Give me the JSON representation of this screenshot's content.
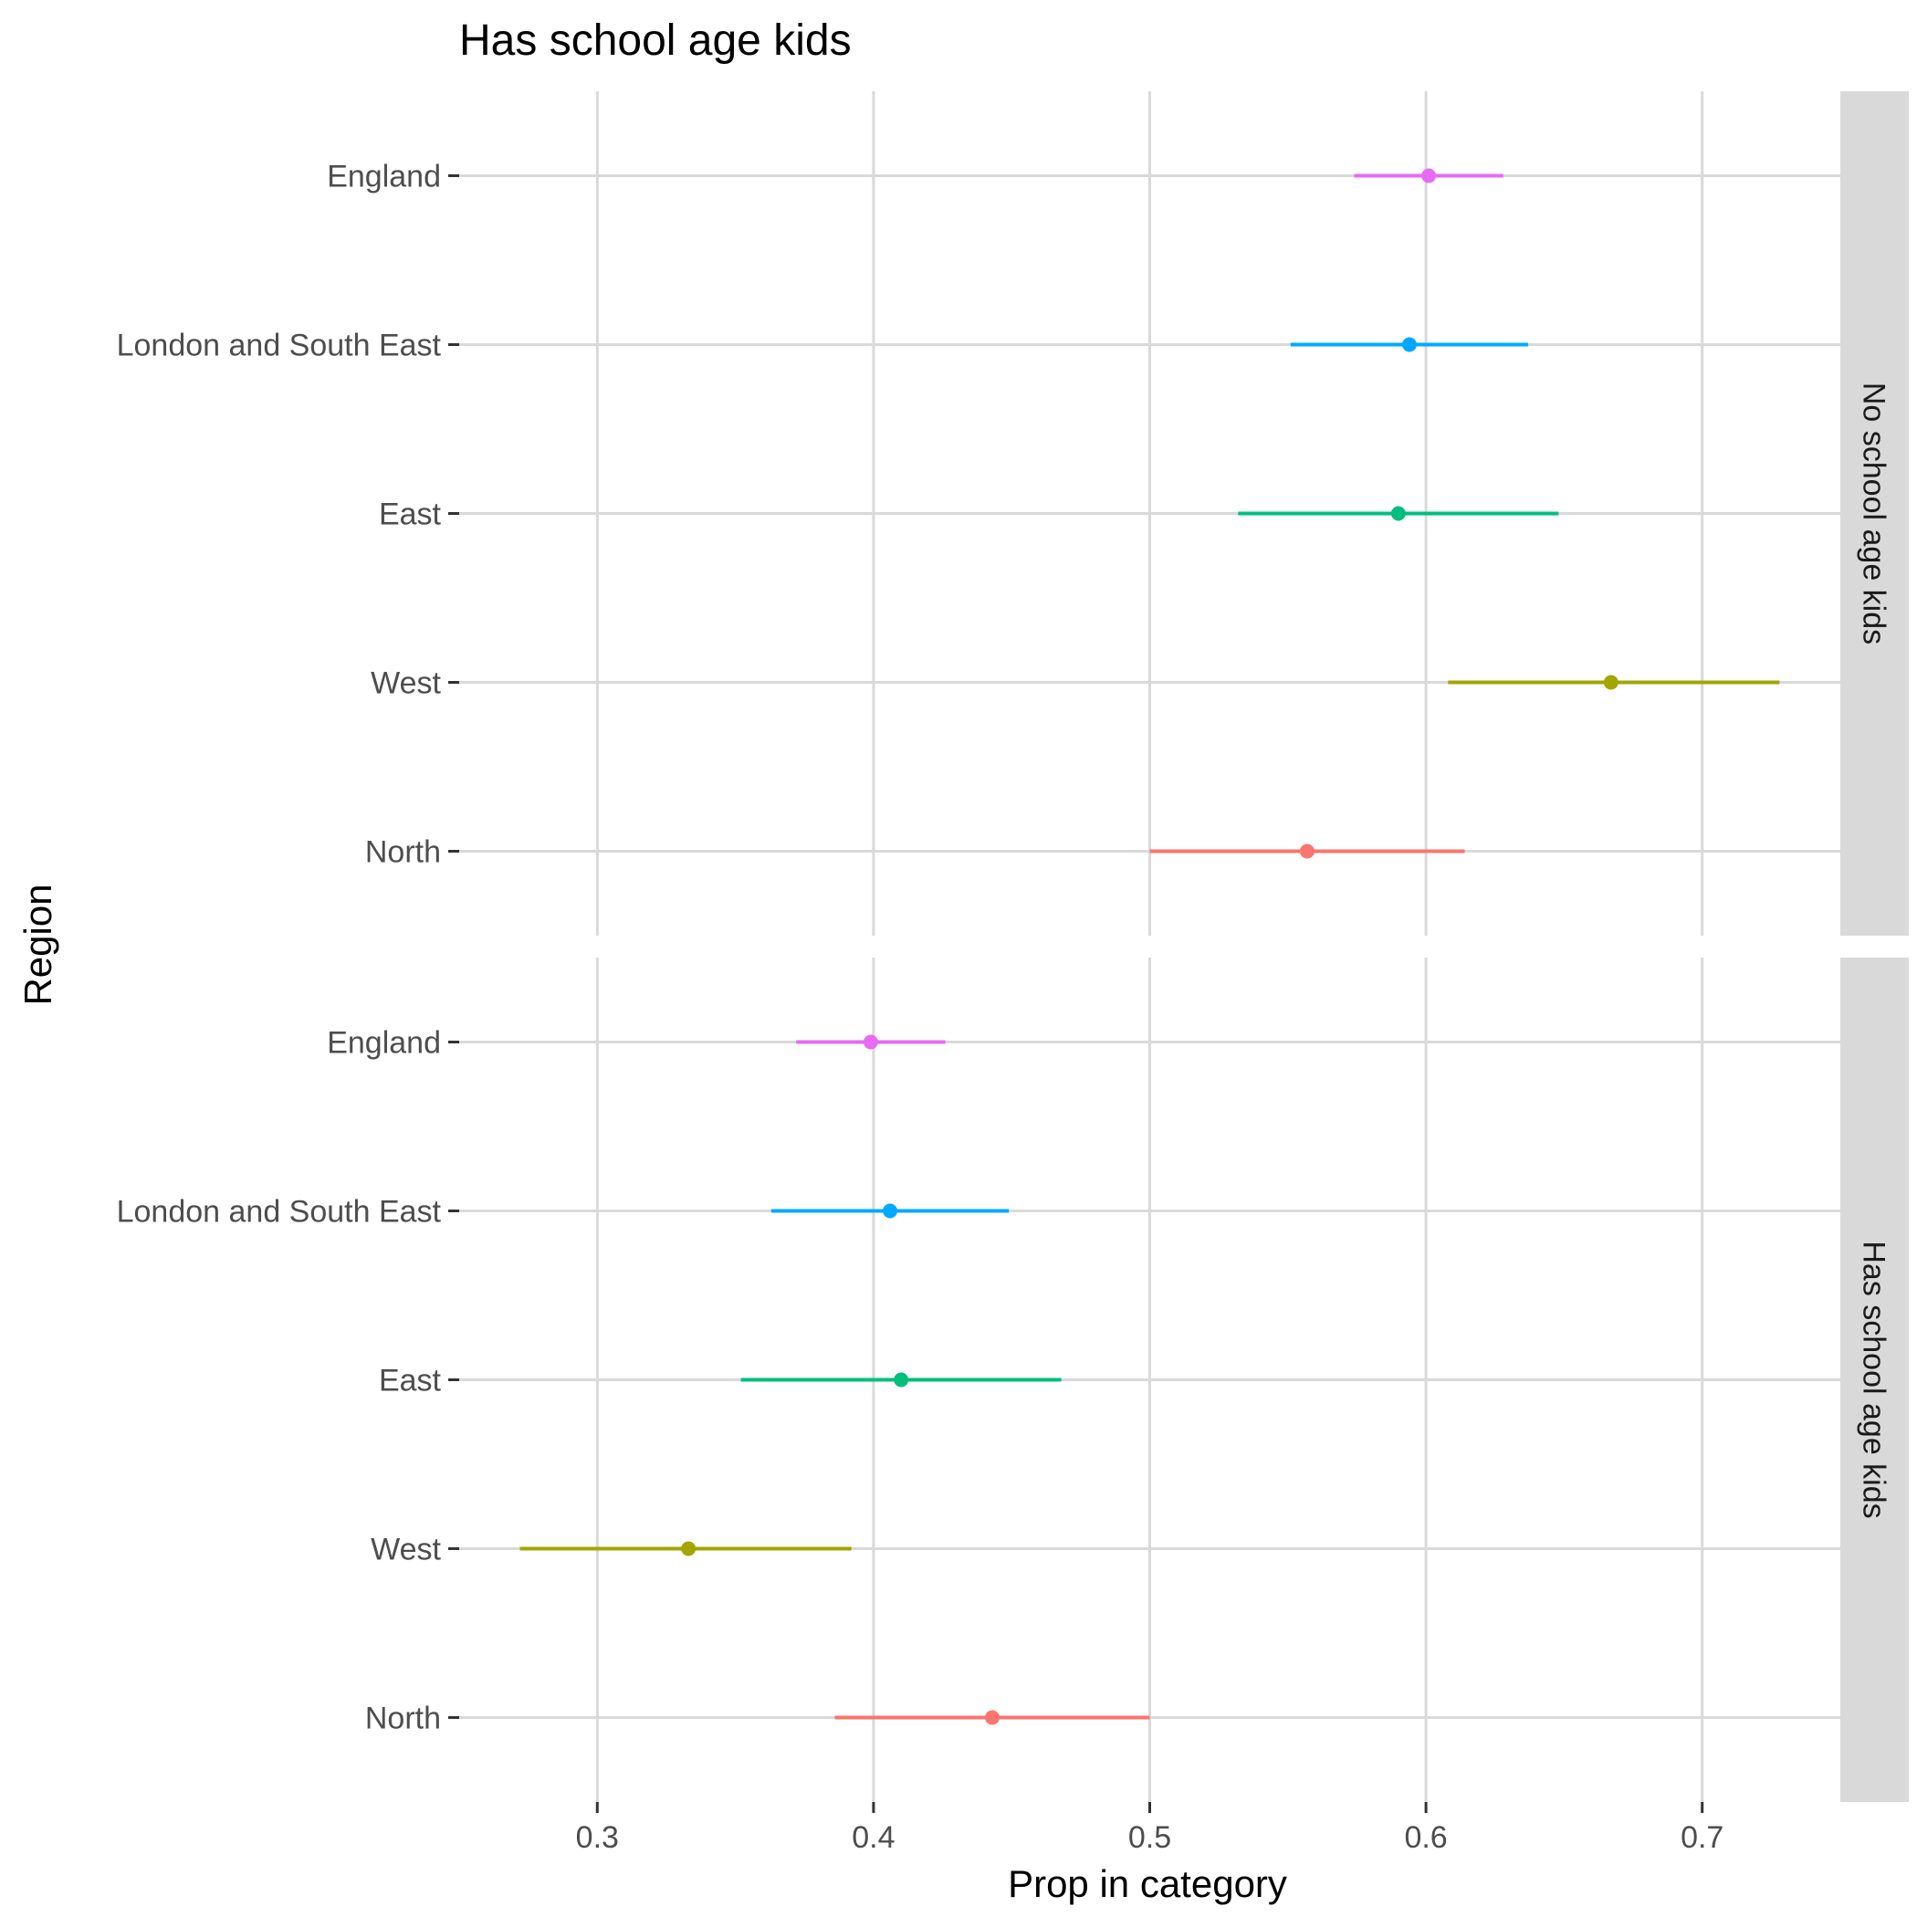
{
  "chart_data": {
    "type": "scatter",
    "title": "Has school age kids",
    "xlabel": "Prop in category",
    "ylabel": "Region",
    "xlim": [
      0.25,
      0.75
    ],
    "xticks": [
      0.3,
      0.4,
      0.5,
      0.6,
      0.7
    ],
    "xtick_labels": [
      "0.3",
      "0.4",
      "0.5",
      "0.6",
      "0.7"
    ],
    "categories": [
      "England",
      "London and South East",
      "East",
      "West",
      "North"
    ],
    "grid": true,
    "legend": "none",
    "colors": {
      "England": "#e76bf3",
      "London and South East": "#00a9ff",
      "East": "#00bf7d",
      "West": "#a3a500",
      "North": "#f8766d"
    },
    "panels": [
      {
        "strip_label": "No school age kids",
        "points": [
          {
            "category": "England",
            "value": 0.601,
            "low": 0.574,
            "high": 0.628
          },
          {
            "category": "London and South East",
            "value": 0.594,
            "low": 0.551,
            "high": 0.637
          },
          {
            "category": "East",
            "value": 0.59,
            "low": 0.532,
            "high": 0.648
          },
          {
            "category": "West",
            "value": 0.667,
            "low": 0.608,
            "high": 0.728
          },
          {
            "category": "North",
            "value": 0.557,
            "low": 0.5,
            "high": 0.614
          }
        ]
      },
      {
        "strip_label": "Has school age kids",
        "points": [
          {
            "category": "England",
            "value": 0.399,
            "low": 0.372,
            "high": 0.426
          },
          {
            "category": "London and South East",
            "value": 0.406,
            "low": 0.363,
            "high": 0.449
          },
          {
            "category": "East",
            "value": 0.41,
            "low": 0.352,
            "high": 0.468
          },
          {
            "category": "West",
            "value": 0.333,
            "low": 0.272,
            "high": 0.392
          },
          {
            "category": "North",
            "value": 0.443,
            "low": 0.386,
            "high": 0.5
          }
        ]
      }
    ]
  }
}
